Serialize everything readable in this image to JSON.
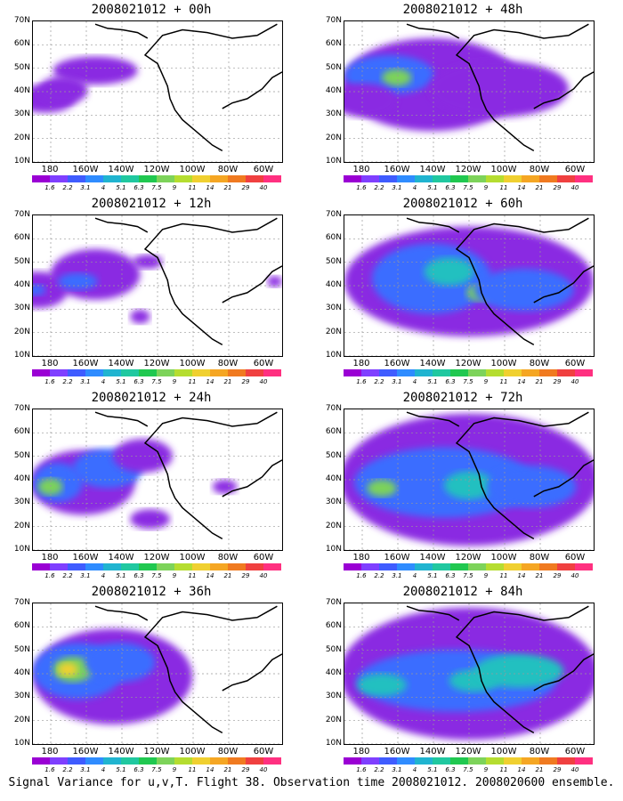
{
  "panels": [
    {
      "title": "2008021012 + 00h",
      "blobs": [
        [
          0.05,
          0.55,
          0.12,
          0.1,
          "#8a2be2"
        ],
        [
          0.25,
          0.35,
          0.17,
          0.1,
          "#8a2be2"
        ],
        [
          0.12,
          0.49,
          0.1,
          0.1,
          "#8a2be2"
        ]
      ]
    },
    {
      "title": "2008021012 + 48h",
      "blobs": [
        [
          0.35,
          0.45,
          0.36,
          0.33,
          "#8a2be2"
        ],
        [
          0.18,
          0.38,
          0.18,
          0.14,
          "#3a6dff"
        ],
        [
          0.21,
          0.4,
          0.06,
          0.06,
          "#7dd35a"
        ],
        [
          0.62,
          0.48,
          0.28,
          0.2,
          "#8a2be2"
        ],
        [
          0.08,
          0.56,
          0.13,
          0.12,
          "#8a2be2"
        ]
      ]
    },
    {
      "title": "2008021012 + 12h",
      "blobs": [
        [
          0.02,
          0.53,
          0.12,
          0.13,
          "#8a2be2"
        ],
        [
          0.25,
          0.42,
          0.18,
          0.18,
          "#8a2be2"
        ],
        [
          0.18,
          0.47,
          0.08,
          0.06,
          "#3a6dff"
        ],
        [
          0.46,
          0.33,
          0.06,
          0.05,
          "#8a2be2"
        ],
        [
          0.43,
          0.72,
          0.04,
          0.05,
          "#8a2be2"
        ],
        [
          0.97,
          0.47,
          0.03,
          0.04,
          "#8a2be2"
        ],
        [
          0.01,
          0.53,
          0.04,
          0.04,
          "#3a6dff"
        ]
      ]
    },
    {
      "title": "2008021012 + 60h",
      "blobs": [
        [
          0.5,
          0.47,
          0.5,
          0.39,
          "#8a2be2"
        ],
        [
          0.35,
          0.45,
          0.24,
          0.25,
          "#3a6dff"
        ],
        [
          0.42,
          0.4,
          0.1,
          0.1,
          "#20c0c0"
        ],
        [
          0.55,
          0.55,
          0.06,
          0.06,
          "#7dd35a"
        ],
        [
          0.72,
          0.53,
          0.2,
          0.15,
          "#3a6dff"
        ]
      ]
    },
    {
      "title": "2008021012 + 24h",
      "blobs": [
        [
          0.2,
          0.52,
          0.21,
          0.23,
          "#8a2be2"
        ],
        [
          0.1,
          0.52,
          0.1,
          0.14,
          "#3a6dff"
        ],
        [
          0.07,
          0.55,
          0.05,
          0.06,
          "#7dd35a"
        ],
        [
          0.3,
          0.42,
          0.14,
          0.14,
          "#3a6dff"
        ],
        [
          0.44,
          0.33,
          0.12,
          0.12,
          "#8a2be2"
        ],
        [
          0.47,
          0.78,
          0.08,
          0.07,
          "#8a2be2"
        ],
        [
          0.77,
          0.55,
          0.05,
          0.05,
          "#8a2be2"
        ]
      ]
    },
    {
      "title": "2008021012 + 72h",
      "blobs": [
        [
          0.5,
          0.5,
          0.52,
          0.47,
          "#8a2be2"
        ],
        [
          0.4,
          0.52,
          0.36,
          0.25,
          "#3a6dff"
        ],
        [
          0.5,
          0.54,
          0.1,
          0.1,
          "#20c0c0"
        ],
        [
          0.15,
          0.56,
          0.06,
          0.06,
          "#7dd35a"
        ],
        [
          0.75,
          0.55,
          0.18,
          0.15,
          "#3a6dff"
        ]
      ]
    },
    {
      "title": "2008021012 + 36h",
      "blobs": [
        [
          0.32,
          0.52,
          0.32,
          0.34,
          "#8a2be2"
        ],
        [
          0.18,
          0.48,
          0.18,
          0.2,
          "#3a6dff"
        ],
        [
          0.16,
          0.47,
          0.08,
          0.09,
          "#7dd35a"
        ],
        [
          0.14,
          0.47,
          0.04,
          0.05,
          "#f0d030"
        ],
        [
          0.35,
          0.42,
          0.14,
          0.14,
          "#3a6dff"
        ]
      ]
    },
    {
      "title": "2008021012 + 84h",
      "blobs": [
        [
          0.5,
          0.5,
          0.52,
          0.47,
          "#8a2be2"
        ],
        [
          0.45,
          0.55,
          0.4,
          0.22,
          "#3a6dff"
        ],
        [
          0.52,
          0.55,
          0.1,
          0.08,
          "#20c0c0"
        ],
        [
          0.7,
          0.48,
          0.18,
          0.12,
          "#20c0c0"
        ],
        [
          0.15,
          0.58,
          0.1,
          0.08,
          "#20c0c0"
        ]
      ]
    }
  ],
  "axis": {
    "lat_labels": [
      "70N",
      "60N",
      "50N",
      "40N",
      "30N",
      "20N",
      "10N"
    ],
    "lon_labels": [
      "180",
      "160W",
      "140W",
      "120W",
      "100W",
      "80W",
      "60W"
    ]
  },
  "colorbar": {
    "colors": [
      "#9a00d4",
      "#7f3fff",
      "#3f5cff",
      "#2f8cff",
      "#20b4d0",
      "#20c8a0",
      "#20c850",
      "#7dd35a",
      "#b5dd30",
      "#f0d030",
      "#f5a623",
      "#f07a20",
      "#f04040",
      "#ff3080"
    ],
    "labels": [
      "1.6",
      "2.2",
      "3.1",
      "4",
      "5.1",
      "6.3",
      "7.5",
      "9",
      "11",
      "14",
      "21",
      "29",
      "40"
    ]
  },
  "caption": "Signal Variance for u,v,T. Flight 38. Observation time 2008021012. 2008020600 ensemble."
}
